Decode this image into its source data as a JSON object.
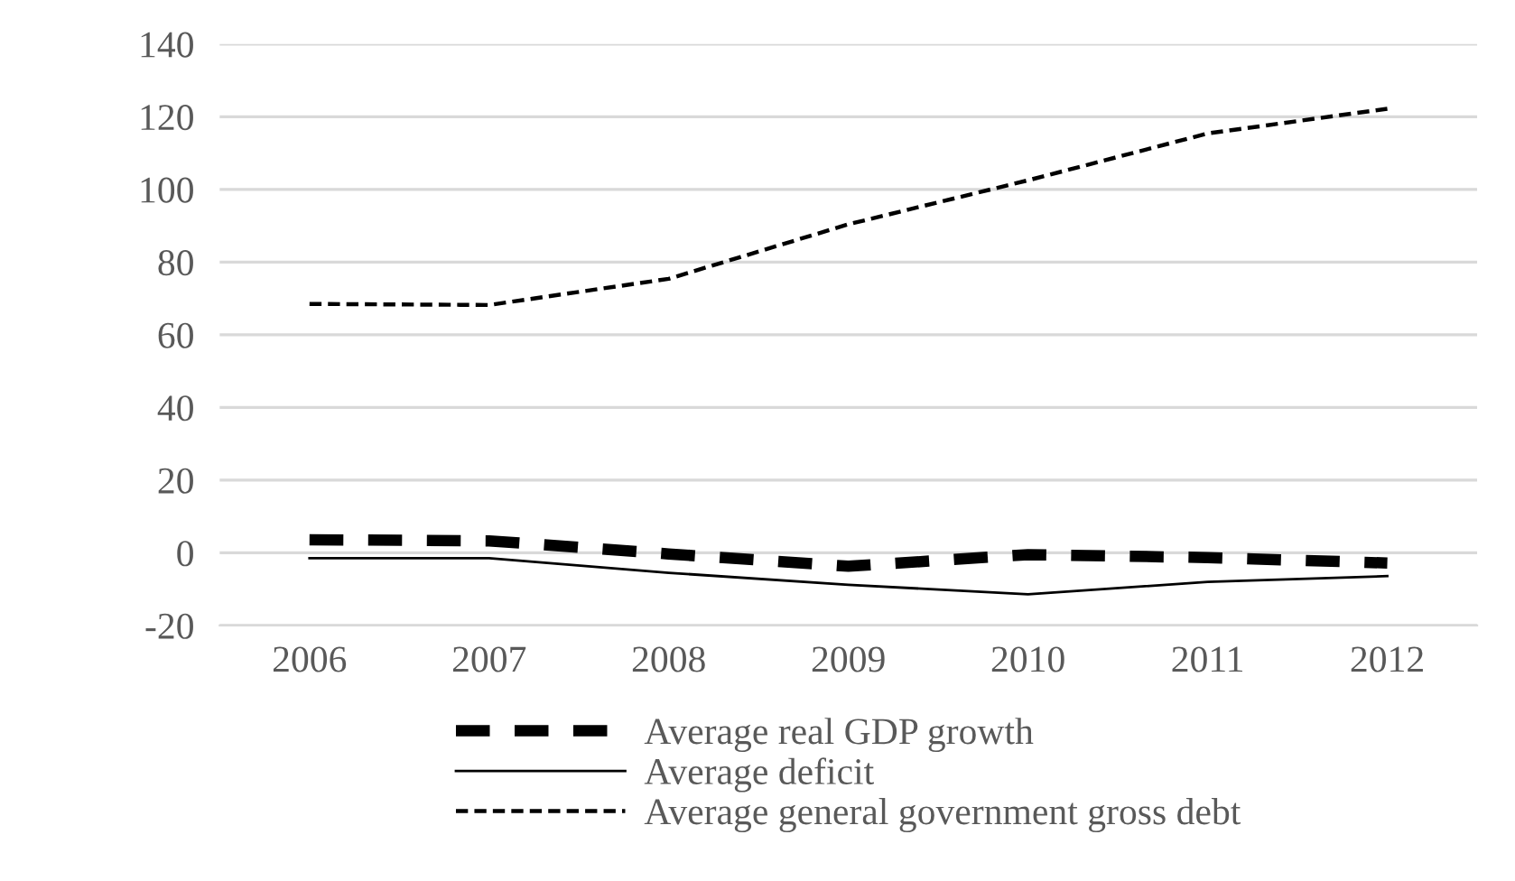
{
  "chart_data": {
    "type": "line",
    "categories": [
      "2006",
      "2007",
      "2008",
      "2009",
      "2010",
      "2011",
      "2012"
    ],
    "series": [
      {
        "name": "Average real GDP growth",
        "color": "#000000",
        "line_style": "dashed",
        "values": [
          3.6,
          3.3,
          -0.3,
          -3.7,
          -0.5,
          -1.3,
          -2.8
        ]
      },
      {
        "name": "Average deficit",
        "color": "#000000",
        "line_style": "solid",
        "values": [
          -1.5,
          -1.5,
          -5.5,
          -8.8,
          -11.4,
          -8,
          -6.4
        ]
      },
      {
        "name": "Average general government gross debt",
        "color": "#000000",
        "line_style": "dotted",
        "values": [
          68.5,
          68.2,
          75.4,
          90.4,
          102.5,
          115.4,
          122.2
        ]
      }
    ],
    "ylim": [
      -20,
      140
    ],
    "yticks": [
      -20,
      0,
      20,
      40,
      60,
      80,
      100,
      120,
      140
    ],
    "grid": "y",
    "legend": "bottom",
    "marker": "none"
  }
}
